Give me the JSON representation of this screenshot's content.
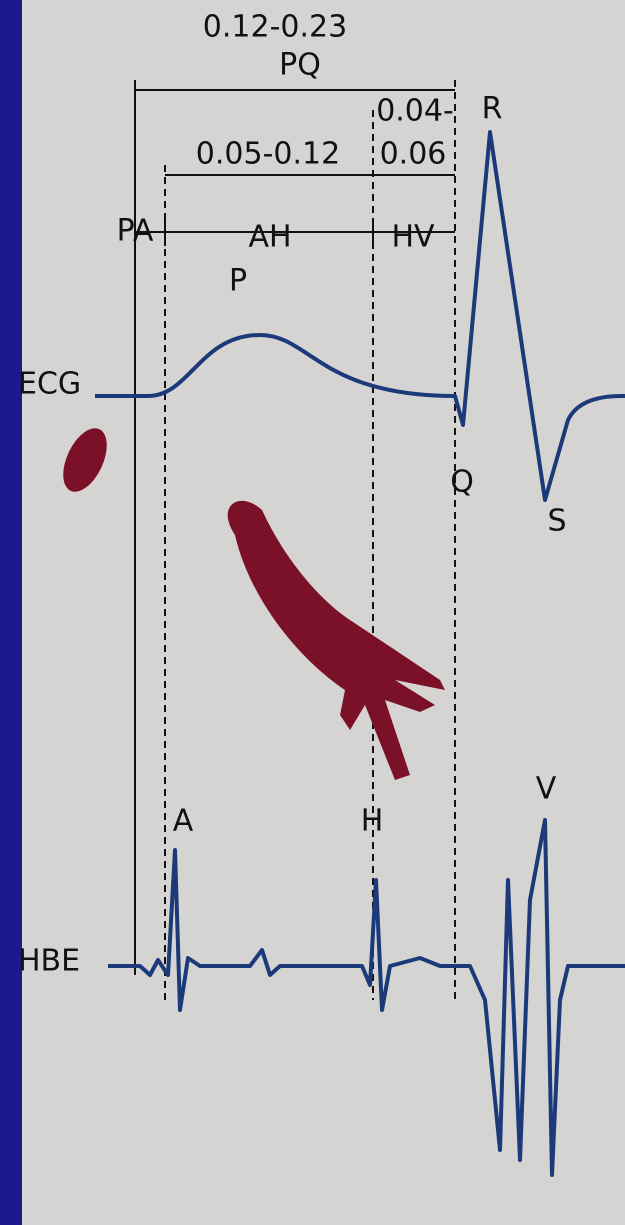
{
  "intervals": {
    "pq_range": "0.12-0.23",
    "pq_label": "PQ",
    "qrs_range_top": "0.04-",
    "qrs_range_bottom": "0.06",
    "ah_range": "0.05-0.12",
    "segments": [
      "PA",
      "AH",
      "HV"
    ]
  },
  "ecg": {
    "label": "ECG",
    "waves": [
      "P",
      "R",
      "Q",
      "S"
    ]
  },
  "hbe": {
    "label": "HBE",
    "waves": [
      "A",
      "H",
      "V"
    ]
  }
}
